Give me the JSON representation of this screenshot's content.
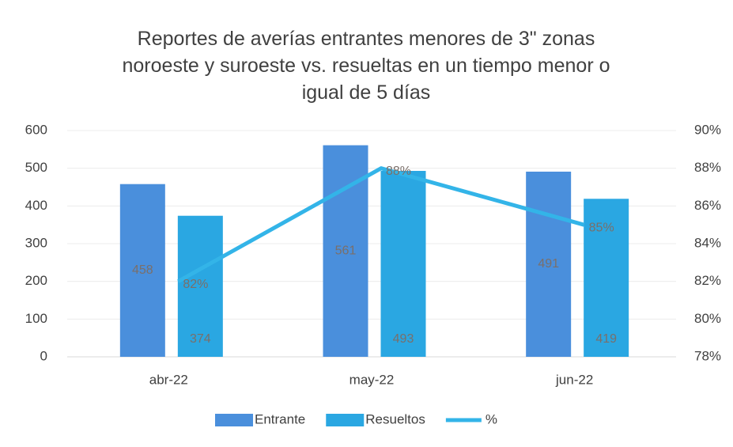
{
  "chart_data": {
    "type": "bar",
    "title": "Reportes de averías entrantes menores de 3\" zonas noroeste y suroeste vs. resueltas en un tiempo  menor o igual  de 5 días",
    "categories": [
      "abr-22",
      "may-22",
      "jun-22"
    ],
    "series": [
      {
        "name": "Entrante",
        "color": "#4a8fdc",
        "values": [
          458,
          561,
          491
        ]
      },
      {
        "name": "Resueltos",
        "color": "#2aa7e2",
        "values": [
          374,
          493,
          419
        ]
      },
      {
        "name": "%",
        "color": "#33b4e8",
        "type": "line",
        "axis": "y2",
        "values": [
          82,
          88,
          85
        ],
        "value_labels": [
          "82%",
          "88%",
          "85%"
        ]
      }
    ],
    "ylim": [
      0,
      600
    ],
    "yticks": [
      0,
      100,
      200,
      300,
      400,
      500,
      600
    ],
    "y2lim": [
      78,
      90
    ],
    "y2ticks": [
      {
        "value": 78,
        "label": "78%"
      },
      {
        "value": 80,
        "label": "80%"
      },
      {
        "value": 82,
        "label": "82%"
      },
      {
        "value": 84,
        "label": "84%"
      },
      {
        "value": 86,
        "label": "86%"
      },
      {
        "value": 88,
        "label": "88%"
      },
      {
        "value": 90,
        "label": "90%"
      }
    ],
    "grid": true,
    "legend": "bottom"
  }
}
